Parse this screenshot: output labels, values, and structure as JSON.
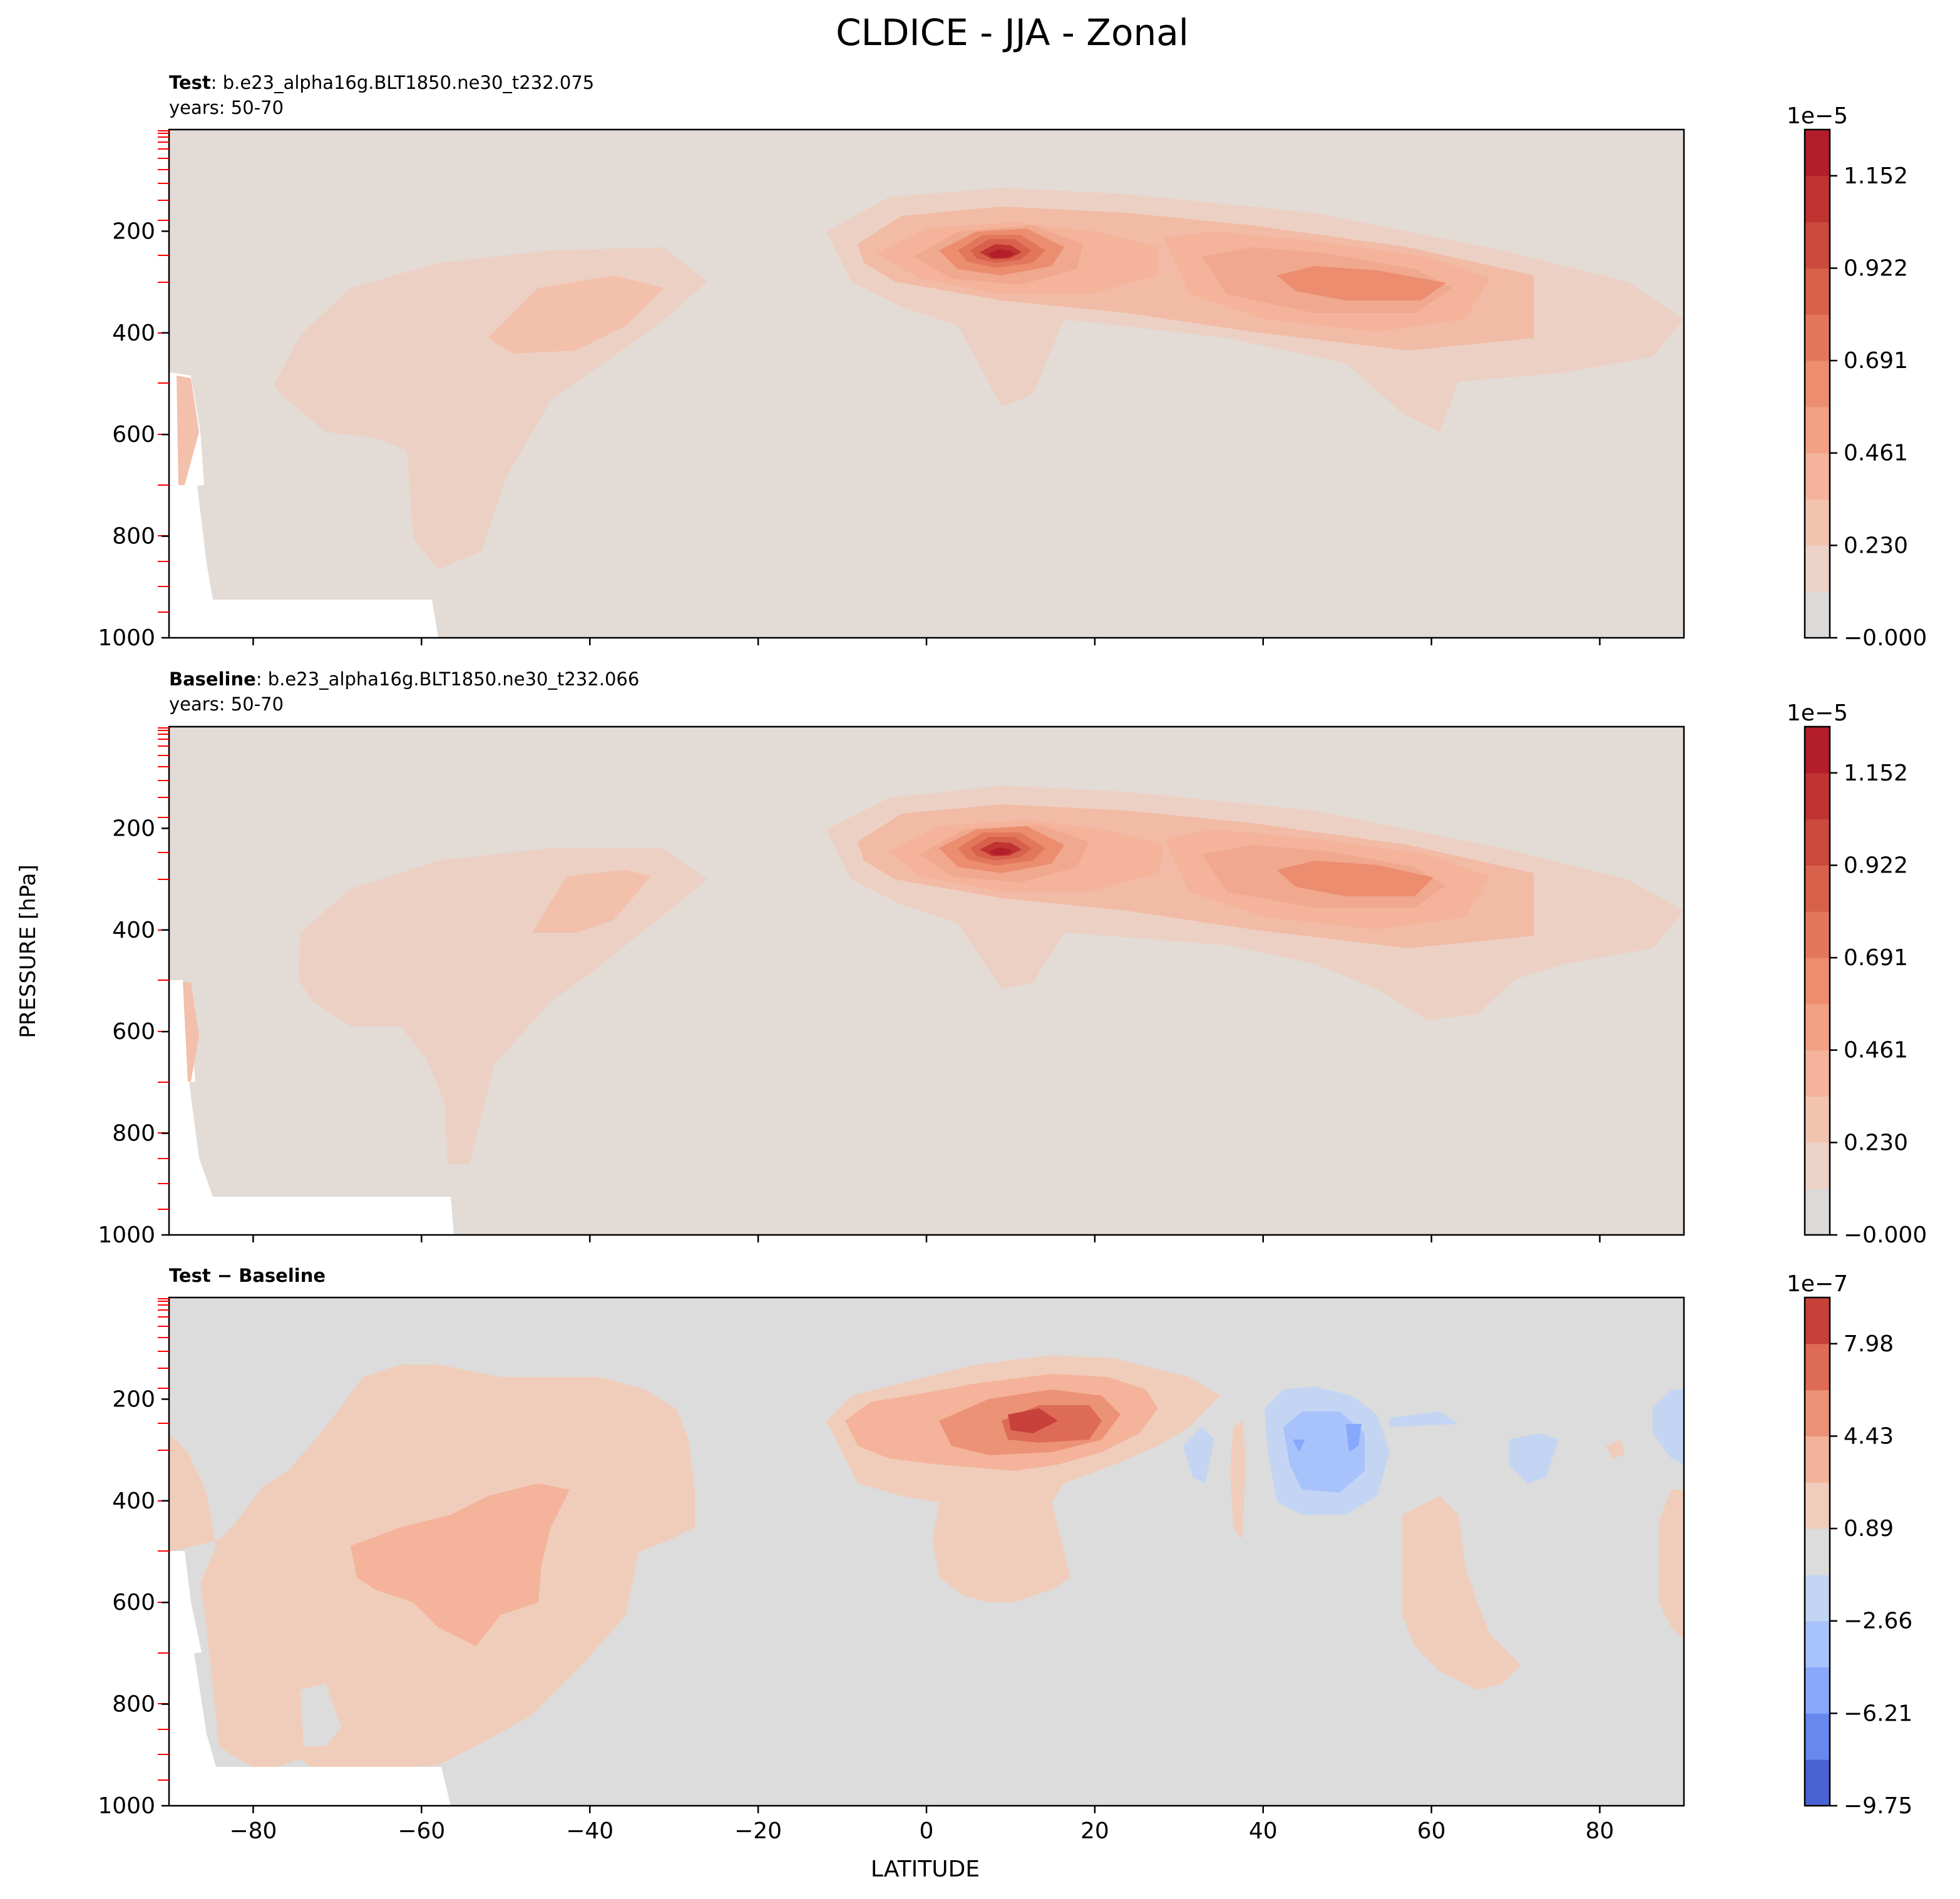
{
  "figure": {
    "title": "CLDICE - JJA - Zonal",
    "ylabel": "PRESSURE [hPa]",
    "xlabel": "LATITUDE"
  },
  "chart_data": [
    {
      "type": "contour",
      "panel": "test",
      "label_bold": "Test",
      "label_rest": ": b.e23_alpha16g.BLT1850.ne30_t232.075",
      "years": "years: 50-70",
      "xlim": [
        -90,
        90
      ],
      "ylim": [
        1000,
        0
      ],
      "xticks": [
        -80,
        -60,
        -40,
        -20,
        0,
        20,
        40,
        60,
        80
      ],
      "xticklabels": [],
      "yticks": [
        200,
        400,
        600,
        800,
        1000
      ],
      "yticklabels": [
        "200",
        "400",
        "600",
        "800",
        "1000"
      ],
      "colorbar": {
        "exponent": "1e−5",
        "ticks": [
          "−0.000",
          "0.230",
          "0.461",
          "0.691",
          "0.922",
          "1.152"
        ],
        "levels": 11,
        "colors": [
          "#dcdad8",
          "#ecd2c7",
          "#f2c4b0",
          "#f4b39a",
          "#f2a184",
          "#ec8d6f",
          "#e3775d",
          "#d8614c",
          "#cc4a3d",
          "#c03331",
          "#b31d2c"
        ]
      },
      "features": [
        {
          "name": "Tropical upper-level max",
          "lat": 9,
          "pressure": 250,
          "value": 1.2e-05
        },
        {
          "name": "NH mid-latitude max",
          "lat": 50,
          "pressure": 300,
          "value": 6e-06
        },
        {
          "name": "SH mid-latitude max",
          "lat": -40,
          "pressure": 330,
          "value": 3.5e-06
        }
      ]
    },
    {
      "type": "contour",
      "panel": "baseline",
      "label_bold": "Baseline",
      "label_rest": ": b.e23_alpha16g.BLT1850.ne30_t232.066",
      "years": "years: 50-70",
      "xlim": [
        -90,
        90
      ],
      "ylim": [
        1000,
        0
      ],
      "xticks": [
        -80,
        -60,
        -40,
        -20,
        0,
        20,
        40,
        60,
        80
      ],
      "xticklabels": [],
      "yticks": [
        200,
        400,
        600,
        800,
        1000
      ],
      "yticklabels": [
        "200",
        "400",
        "600",
        "800",
        "1000"
      ],
      "colorbar": {
        "exponent": "1e−5",
        "ticks": [
          "−0.000",
          "0.230",
          "0.461",
          "0.691",
          "0.922",
          "1.152"
        ],
        "levels": 11,
        "colors": [
          "#dcdad8",
          "#ecd2c7",
          "#f2c4b0",
          "#f4b39a",
          "#f2a184",
          "#ec8d6f",
          "#e3775d",
          "#d8614c",
          "#cc4a3d",
          "#c03331",
          "#b31d2c"
        ]
      },
      "features": [
        {
          "name": "Tropical upper-level max",
          "lat": 9,
          "pressure": 250,
          "value": 1.2e-05
        },
        {
          "name": "NH mid-latitude max",
          "lat": 50,
          "pressure": 300,
          "value": 6.5e-06
        },
        {
          "name": "SH mid-latitude max",
          "lat": -40,
          "pressure": 360,
          "value": 3.5e-06
        }
      ]
    },
    {
      "type": "contour",
      "panel": "difference",
      "label_bold": "Test − Baseline",
      "label_rest": "",
      "years": "",
      "xlim": [
        -90,
        90
      ],
      "ylim": [
        1000,
        0
      ],
      "xticks": [
        -80,
        -60,
        -40,
        -20,
        0,
        20,
        40,
        60,
        80
      ],
      "xticklabels": [
        "−80",
        "−60",
        "−40",
        "−20",
        "0",
        "20",
        "40",
        "60",
        "80"
      ],
      "yticks": [
        200,
        400,
        600,
        800,
        1000
      ],
      "yticklabels": [
        "200",
        "400",
        "600",
        "800",
        "1000"
      ],
      "colorbar": {
        "exponent": "1e−7",
        "ticks": [
          "−9.75",
          "−6.21",
          "−2.66",
          "0.89",
          "4.43",
          "7.98"
        ],
        "levels": 11,
        "colors": [
          "#4a63d3",
          "#6688ef",
          "#87a8fb",
          "#a8c2fb",
          "#c4d5f3",
          "#dcdcdc",
          "#f0cdbb",
          "#f3b39a",
          "#ec9276",
          "#de6b55",
          "#c8403a"
        ]
      },
      "features": [
        {
          "name": "Tropical positive",
          "lat": 12,
          "pressure": 250,
          "value": 6e-07
        },
        {
          "name": "NH mid-latitude negative",
          "lat": 48,
          "pressure": 310,
          "value": -6e-07
        },
        {
          "name": "SH positive",
          "lat": -50,
          "pressure": 550,
          "value": 3e-07
        }
      ]
    }
  ]
}
